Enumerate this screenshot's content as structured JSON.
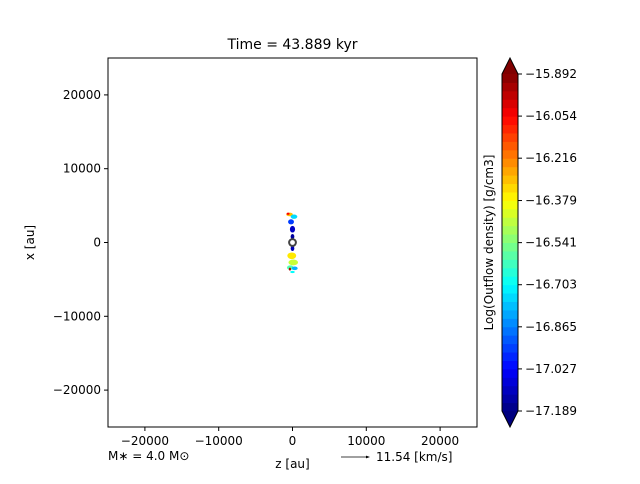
{
  "chart_data": {
    "type": "heatmap",
    "title": "Time = 43.889 kyr",
    "xlabel": "z [au]",
    "ylabel": "x [au]",
    "xlim": [
      -25000,
      25000
    ],
    "ylim": [
      -25000,
      25000
    ],
    "xticks": [
      -20000,
      -10000,
      0,
      10000,
      20000
    ],
    "xtick_labels": [
      "−20000",
      "−10000",
      "0",
      "10000",
      "20000"
    ],
    "yticks": [
      -20000,
      -10000,
      0,
      10000,
      20000
    ],
    "ytick_labels": [
      "−20000",
      "−10000",
      "0",
      "10000",
      "20000"
    ],
    "grid": false,
    "colorbar": {
      "label": "Log(Outflow density) [g/cm3]",
      "colormap": "jet",
      "min": -17.189,
      "max": -15.892,
      "ticks": [
        -15.892,
        -16.054,
        -16.216,
        -16.379,
        -16.541,
        -16.703,
        -16.865,
        -17.027,
        -17.189
      ],
      "tick_labels": [
        "−15.892",
        "−16.054",
        "−16.216",
        "−16.379",
        "−16.541",
        "−16.703",
        "−16.865",
        "−17.027",
        "−17.189"
      ],
      "extend": "both"
    },
    "star_marker": {
      "z": 0,
      "x": 0
    },
    "blobs": [
      {
        "z": -400,
        "x": 3800,
        "w": 900,
        "h": 500,
        "value": -16.3
      },
      {
        "z": 200,
        "x": 3500,
        "w": 900,
        "h": 600,
        "value": -16.75
      },
      {
        "z": -200,
        "x": 2800,
        "w": 800,
        "h": 700,
        "value": -16.95
      },
      {
        "z": 0,
        "x": 1800,
        "w": 700,
        "h": 900,
        "value": -17.1
      },
      {
        "z": 0,
        "x": 800,
        "w": 500,
        "h": 700,
        "value": -17.15
      },
      {
        "z": -600,
        "x": 3900,
        "w": 400,
        "h": 300,
        "value": -16.05
      },
      {
        "z": 0,
        "x": -800,
        "w": 500,
        "h": 700,
        "value": -17.12
      },
      {
        "z": -100,
        "x": -1800,
        "w": 1200,
        "h": 900,
        "value": -16.35
      },
      {
        "z": 100,
        "x": -2700,
        "w": 1300,
        "h": 800,
        "value": -16.45
      },
      {
        "z": -300,
        "x": -3400,
        "w": 900,
        "h": 600,
        "value": -16.6
      },
      {
        "z": 300,
        "x": -3500,
        "w": 800,
        "h": 500,
        "value": -16.8
      },
      {
        "z": -350,
        "x": -3600,
        "w": 300,
        "h": 400,
        "value": -15.95
      },
      {
        "z": 0,
        "x": -4000,
        "w": 600,
        "h": 300,
        "value": -16.7
      }
    ],
    "footer_left": "M∗ = 4.0 M⊙",
    "footer_right": "11.54 [km/s]"
  }
}
